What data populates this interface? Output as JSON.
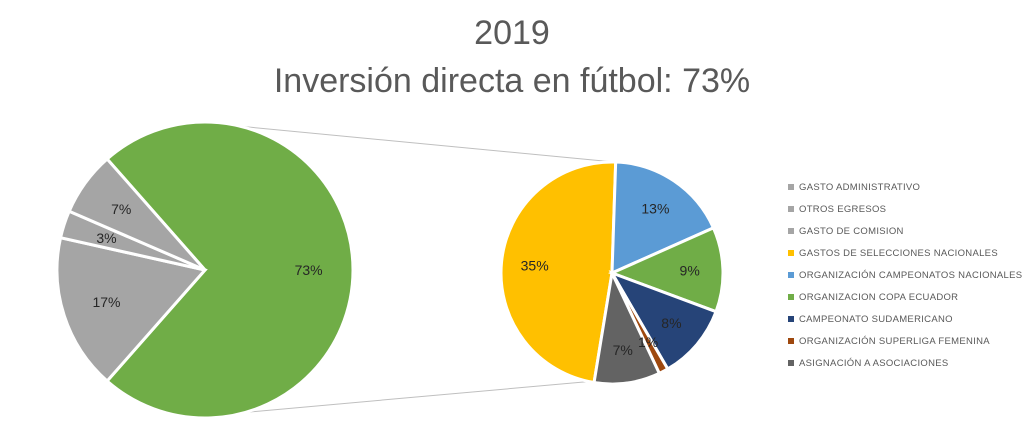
{
  "title": "2019",
  "subtitle": "Inversión directa en fútbol: 73%",
  "chart_data": [
    {
      "type": "pie",
      "slices": [
        {
          "value": 73,
          "label": "73%",
          "color": "#70AD47"
        },
        {
          "value": 17,
          "label": "17%",
          "color": "#A5A5A5"
        },
        {
          "value": 3,
          "label": "3%",
          "color": "#A5A5A5"
        },
        {
          "value": 7,
          "label": "7%",
          "color": "#A5A5A5"
        }
      ]
    },
    {
      "type": "pie",
      "categories": [
        "GASTO ADMINISTRATIVO",
        "OTROS EGRESOS",
        "GASTO DE COMISION",
        "GASTOS DE SELECCIONES NACIONALES",
        "ORGANIZACIÓN CAMPEONATOS NACIONALES",
        "ORGANIZACION COPA ECUADOR",
        "CAMPEONATO SUDAMERICANO",
        "ORGANIZACIÓN SUPERLIGA FEMENINA",
        "ASIGNACIÓN A ASOCIACIONES"
      ],
      "legend_colors": [
        "#A5A5A5",
        "#A5A5A5",
        "#A5A5A5",
        "#FFC000",
        "#5B9BD5",
        "#70AD47",
        "#264478",
        "#9E480E",
        "#636363"
      ],
      "slices": [
        {
          "value": 35,
          "label": "35%",
          "color": "#FFC000"
        },
        {
          "value": 13,
          "label": "13%",
          "color": "#5B9BD5"
        },
        {
          "value": 9,
          "label": "9%",
          "color": "#70AD47"
        },
        {
          "value": 8,
          "label": "8%",
          "color": "#264478"
        },
        {
          "value": 1,
          "label": "1%",
          "color": "#9E480E"
        },
        {
          "value": 7,
          "label": "7%",
          "color": "#636363"
        }
      ],
      "legend_position": "right"
    }
  ]
}
